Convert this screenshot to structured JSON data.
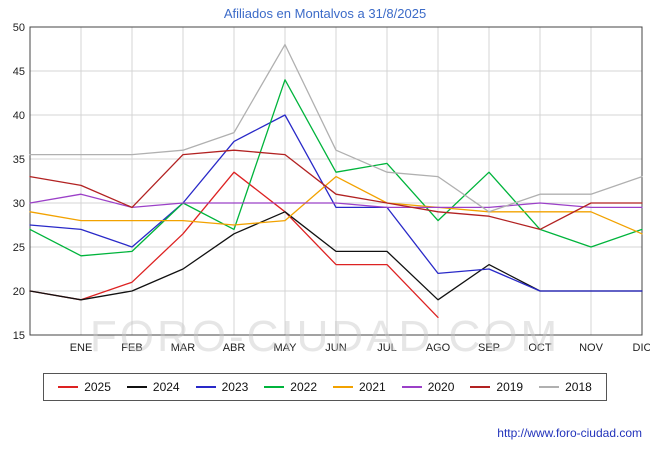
{
  "chart_data": {
    "type": "line",
    "title": "Afiliados en Montalvos a 31/8/2025",
    "xlabel": "",
    "ylabel": "",
    "ylim": [
      15,
      50
    ],
    "y_ticks": [
      15,
      20,
      25,
      30,
      35,
      40,
      45,
      50
    ],
    "x_labels": [
      "ENE",
      "FEB",
      "MAR",
      "ABR",
      "MAY",
      "JUN",
      "JUL",
      "AGO",
      "SEP",
      "OCT",
      "NOV",
      "DIC"
    ],
    "grid": "on",
    "legend_position": "bottom",
    "series": [
      {
        "name": "2025",
        "color": "#dd2222",
        "values": [
          20,
          19,
          21,
          26.5,
          33.5,
          29,
          23,
          23,
          17
        ]
      },
      {
        "name": "2024",
        "color": "#111111",
        "values": [
          20,
          19,
          20,
          22.5,
          26.5,
          29,
          24.5,
          24.5,
          19,
          23,
          20,
          20,
          20
        ]
      },
      {
        "name": "2023",
        "color": "#2929c8",
        "values": [
          27.5,
          27,
          25,
          30,
          37,
          40,
          29.5,
          29.5,
          22,
          22.5,
          20,
          20,
          20
        ]
      },
      {
        "name": "2022",
        "color": "#00b43c",
        "values": [
          27,
          24,
          24.5,
          30,
          27,
          44,
          33.5,
          34.5,
          28,
          33.5,
          27,
          25,
          27
        ]
      },
      {
        "name": "2021",
        "color": "#f2a200",
        "values": [
          29,
          28,
          28,
          28,
          27.5,
          28,
          33,
          30,
          29.5,
          29,
          29,
          29,
          26.5
        ]
      },
      {
        "name": "2020",
        "color": "#9b40c8",
        "values": [
          30,
          31,
          29.5,
          30,
          30,
          30,
          30,
          29.5,
          29.5,
          29.5,
          30,
          29.5,
          29.5
        ]
      },
      {
        "name": "2019",
        "color": "#b22222",
        "values": [
          33,
          32,
          29.5,
          35.5,
          36,
          35.5,
          31,
          30,
          29,
          28.5,
          27,
          30,
          30
        ]
      },
      {
        "name": "2018",
        "color": "#b0b0b0",
        "values": [
          35.5,
          35.5,
          35.5,
          36,
          38,
          48,
          36,
          33.5,
          33,
          29,
          31,
          31,
          33
        ]
      }
    ]
  },
  "watermark": {
    "text": "FORO-CIUDAD.COM"
  },
  "footer": {
    "url": "http://www.foro-ciudad.com"
  }
}
